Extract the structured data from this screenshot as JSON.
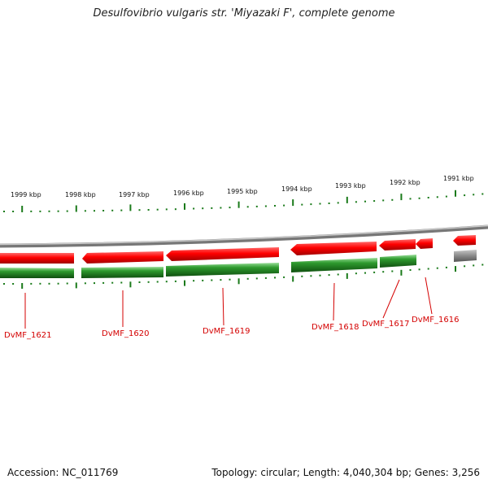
{
  "title": "Desulfovibrio vulgaris str. 'Miyazaki F', complete genome",
  "accession": "Accession: NC_011769",
  "summary": "Topology: circular; Length: 4,040,304 bp; Genes: 3,256",
  "scale_labels": [
    "1999 kbp",
    "1998 kbp",
    "1997 kbp",
    "1996 kbp",
    "1995 kbp",
    "1994 kbp",
    "1993 kbp",
    "1992 kbp",
    "1991 kbp"
  ],
  "genes": [
    "DvMF_1621",
    "DvMF_1620",
    "DvMF_1619",
    "DvMF_1618",
    "DvMF_1617",
    "DvMF_1616"
  ],
  "colors": {
    "forward": "#ff0000",
    "reverse_cds": "#228b22",
    "backbone": "#888888",
    "label": "#d40000"
  }
}
